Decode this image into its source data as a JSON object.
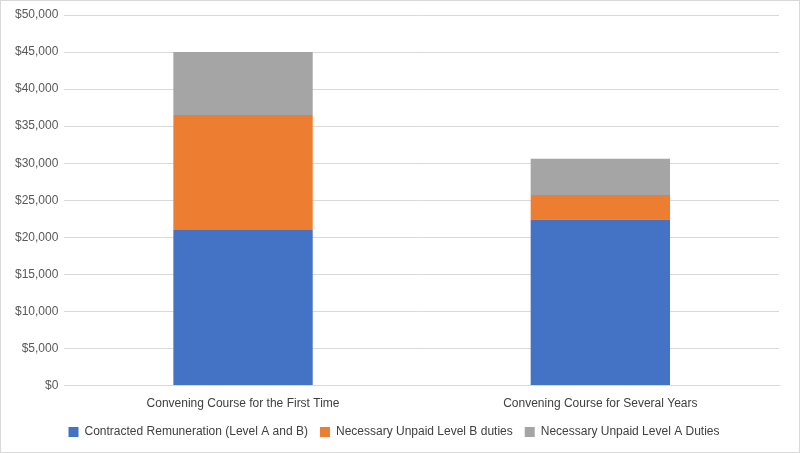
{
  "chart_data": {
    "type": "bar",
    "categories": [
      "Convening Course for the First Time",
      "Convening Course for Several Years"
    ],
    "series": [
      {
        "name": "Contracted Remuneration (Level A and B)",
        "color": "#4472c4",
        "values": [
          21000,
          22400
        ]
      },
      {
        "name": "Necessary Unpaid Level B duties",
        "color": "#ed7d31",
        "values": [
          15500,
          3300
        ]
      },
      {
        "name": "Necessary Unpaid Level A Duties",
        "color": "#a5a5a5",
        "values": [
          8500,
          4900
        ]
      }
    ],
    "ylim": [
      0,
      50000
    ],
    "yticks": [
      {
        "value": 0,
        "label": "$0"
      },
      {
        "value": 5000,
        "label": "$5,000"
      },
      {
        "value": 10000,
        "label": "$10,000"
      },
      {
        "value": 15000,
        "label": "$15,000"
      },
      {
        "value": 20000,
        "label": "$20,000"
      },
      {
        "value": 25000,
        "label": "$25,000"
      },
      {
        "value": 30000,
        "label": "$30,000"
      },
      {
        "value": 35000,
        "label": "$35,000"
      },
      {
        "value": 40000,
        "label": "$40,000"
      },
      {
        "value": 45000,
        "label": "$45,000"
      },
      {
        "value": 50000,
        "label": "$50,000"
      }
    ],
    "stacked": true,
    "grid": true,
    "legend": "bottom"
  }
}
